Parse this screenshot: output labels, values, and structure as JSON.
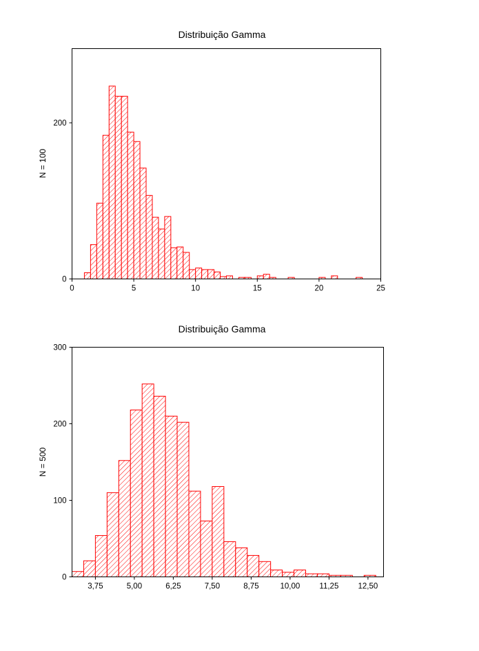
{
  "chart_data": [
    {
      "type": "bar",
      "title": "Distribuição Gamma",
      "xlabel": "",
      "ylabel": "N = 100",
      "xlim": [
        0,
        25
      ],
      "ylim": [
        0,
        295
      ],
      "xticks": [
        "0",
        "5",
        "10",
        "15",
        "20",
        "25"
      ],
      "xtick_values": [
        0,
        5,
        10,
        15,
        20,
        25
      ],
      "yticks": [
        "0",
        "200"
      ],
      "ytick_values": [
        0,
        200
      ],
      "bin_width": 0.5,
      "bin_start": 1.0,
      "values": [
        8,
        44,
        97,
        184,
        247,
        234,
        234,
        188,
        176,
        142,
        107,
        79,
        64,
        80,
        40,
        41,
        34,
        12,
        14,
        12,
        12,
        9,
        3,
        4,
        0,
        2,
        2,
        0,
        4,
        6,
        2,
        0,
        0,
        2,
        0,
        0,
        0,
        0,
        2,
        0,
        4,
        0,
        0,
        0,
        2
      ],
      "fill_color": "#ff0000",
      "hatch": "diagonal",
      "grid": false
    },
    {
      "type": "bar",
      "title": "Distribuição Gamma",
      "xlabel": "",
      "ylabel": "N = 500",
      "xlim": [
        3.0,
        13.0
      ],
      "ylim": [
        0,
        300
      ],
      "xticks": [
        "3,75",
        "5,00",
        "6,25",
        "7,50",
        "8,75",
        "10,00",
        "11,25",
        "12,50"
      ],
      "xtick_values": [
        3.75,
        5.0,
        6.25,
        7.5,
        8.75,
        10.0,
        11.25,
        12.5
      ],
      "yticks": [
        "0",
        "100",
        "200",
        "300"
      ],
      "ytick_values": [
        0,
        100,
        200,
        300
      ],
      "bin_width": 0.375,
      "bin_start": 3.0,
      "values": [
        7,
        21,
        54,
        110,
        152,
        218,
        252,
        236,
        210,
        202,
        112,
        73,
        118,
        46,
        38,
        28,
        20,
        9,
        6,
        9,
        4,
        4,
        2,
        2,
        0,
        2
      ],
      "fill_color": "#ff0000",
      "hatch": "diagonal",
      "grid": false
    }
  ]
}
